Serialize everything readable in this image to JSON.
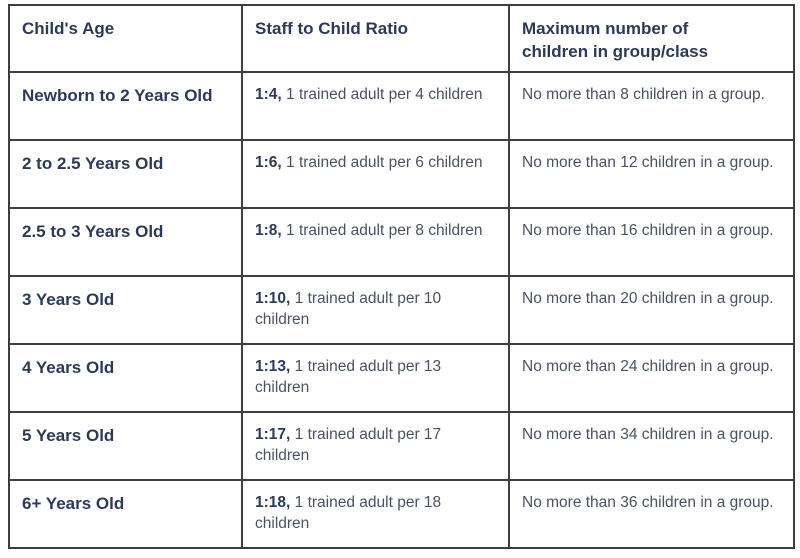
{
  "colors": {
    "text_heading": "#2d3a56",
    "text_body": "#4a5263",
    "border": "#3e3e3e",
    "background": "#ffffff"
  },
  "chart_data": {
    "type": "table",
    "columns": [
      "Child's Age",
      "Staff to Child Ratio",
      "Maximum number of\nchildren in group/class"
    ],
    "rows": [
      {
        "age": "Newborn to 2 Years Old",
        "ratio": "1:4,",
        "ratio_description": "1 trained adult per 4 children",
        "max_children": "No more than 8 children in a group."
      },
      {
        "age": "2 to 2.5 Years Old",
        "ratio": "1:6,",
        "ratio_description": "1 trained adult per 6 children",
        "max_children": "No more than 12 children in a group."
      },
      {
        "age": "2.5 to 3 Years Old",
        "ratio": "1:8,",
        "ratio_description": "1 trained adult per 8 children",
        "max_children": "No more than 16 children in a group."
      },
      {
        "age": "3 Years Old",
        "ratio": "1:10,",
        "ratio_description": "1 trained adult per 10 children",
        "max_children": "No more than 20 children in a group."
      },
      {
        "age": "4 Years Old",
        "ratio": "1:13,",
        "ratio_description": "1 trained adult per 13 children",
        "max_children": "No more than 24 children in a group."
      },
      {
        "age": "5 Years Old",
        "ratio": "1:17,",
        "ratio_description": "1 trained adult per 17 children",
        "max_children": "No more than 34 children in a group."
      },
      {
        "age": "6+ Years Old",
        "ratio": "1:18,",
        "ratio_description": "1 trained adult per 18 children",
        "max_children": "No more than 36 children in a group."
      }
    ]
  }
}
